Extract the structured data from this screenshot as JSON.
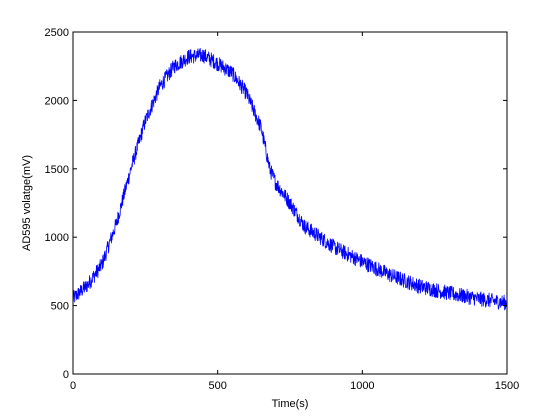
{
  "chart_data": {
    "type": "line",
    "title": "",
    "xlabel": "Time(s)",
    "ylabel": "AD595 volatge(mV)",
    "xlim": [
      0,
      1500
    ],
    "ylim": [
      0,
      2500
    ],
    "xticks": [
      0,
      500,
      1000,
      1500
    ],
    "yticks": [
      0,
      500,
      1000,
      1500,
      2000,
      2500
    ],
    "grid": false,
    "legend": "none",
    "line_color": "#0000ff",
    "series": [
      {
        "x": [
          0,
          50,
          100,
          150,
          200,
          250,
          300,
          350,
          400,
          450,
          500,
          550,
          600,
          650,
          680,
          700,
          750,
          800,
          900,
          1000,
          1100,
          1200,
          1300,
          1400,
          1500
        ],
        "values": [
          550,
          650,
          800,
          1100,
          1500,
          1850,
          2100,
          2250,
          2320,
          2330,
          2270,
          2200,
          2050,
          1800,
          1500,
          1400,
          1250,
          1080,
          930,
          820,
          720,
          640,
          590,
          550,
          520
        ],
        "noise_amplitude": 55
      }
    ]
  }
}
